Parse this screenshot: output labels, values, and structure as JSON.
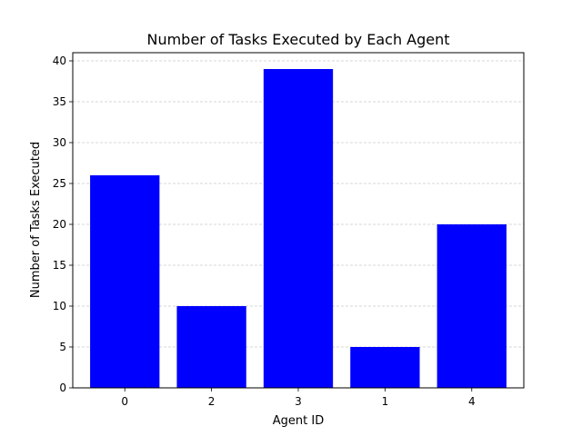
{
  "chart_data": {
    "type": "bar",
    "title": "Number of Tasks Executed by Each Agent",
    "xlabel": "Agent ID",
    "ylabel": "Number of Tasks Executed",
    "categories": [
      "0",
      "2",
      "3",
      "1",
      "4"
    ],
    "values": [
      26,
      10,
      39,
      5,
      20
    ],
    "ylim": [
      0,
      41
    ],
    "yticks": [
      0,
      5,
      10,
      15,
      20,
      25,
      30,
      35,
      40
    ],
    "bar_color": "#0000ff",
    "grid": "y-dashed",
    "legend": "none"
  }
}
